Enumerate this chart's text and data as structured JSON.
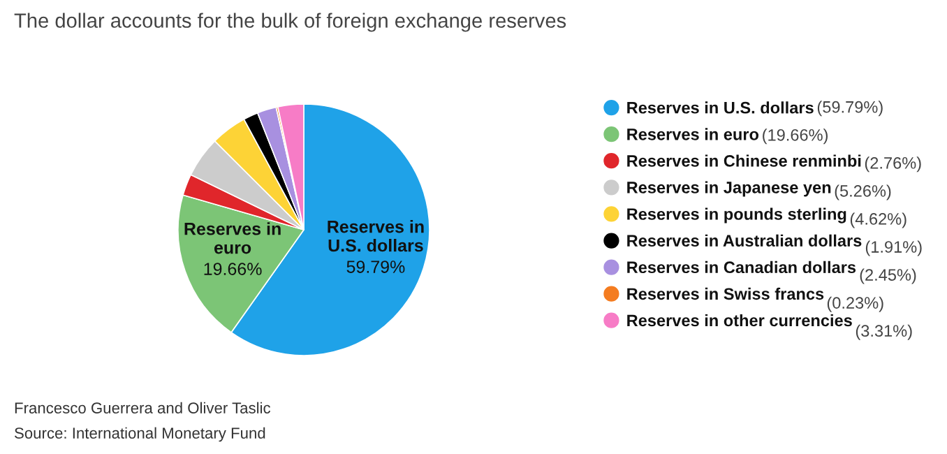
{
  "chart_data": {
    "type": "pie",
    "title": "The dollar accounts for the bulk of foreign exchange reserves",
    "categories": [
      "Reserves in U.S. dollars",
      "Reserves in euro",
      "Reserves in Chinese renminbi",
      "Reserves in Japanese yen",
      "Reserves in pounds sterling",
      "Reserves in Australian dollars",
      "Reserves in Canadian dollars",
      "Reserves in Swiss francs",
      "Reserves in other currencies"
    ],
    "values": [
      59.79,
      19.66,
      2.76,
      5.26,
      4.62,
      1.91,
      2.45,
      0.23,
      3.31
    ],
    "colors": [
      "#1fa2e8",
      "#7cc576",
      "#e0262b",
      "#cccccc",
      "#fdd336",
      "#000000",
      "#a890e0",
      "#f47c20",
      "#f77cc6"
    ],
    "value_labels": [
      "(59.79%)",
      "(19.66%)",
      "(2.76%)",
      "(5.26%)",
      "(4.62%)",
      "(1.91%)",
      "(2.45%)",
      "(0.23%)",
      "(3.31%)"
    ],
    "annotations": [
      {
        "text": "Reserves in\nU.S. dollars",
        "x": "Reserves in U.S. dollars"
      },
      {
        "text": "59.79%",
        "x": "Reserves in U.S. dollars"
      },
      {
        "text": "Reserves in\neuro",
        "x": "Reserves in euro"
      },
      {
        "text": "19.66%",
        "x": "Reserves in euro"
      },
      "Francesco Guerrera and Oliver Taslic",
      "Source: International Monetary Fund"
    ],
    "legend": "right"
  }
}
